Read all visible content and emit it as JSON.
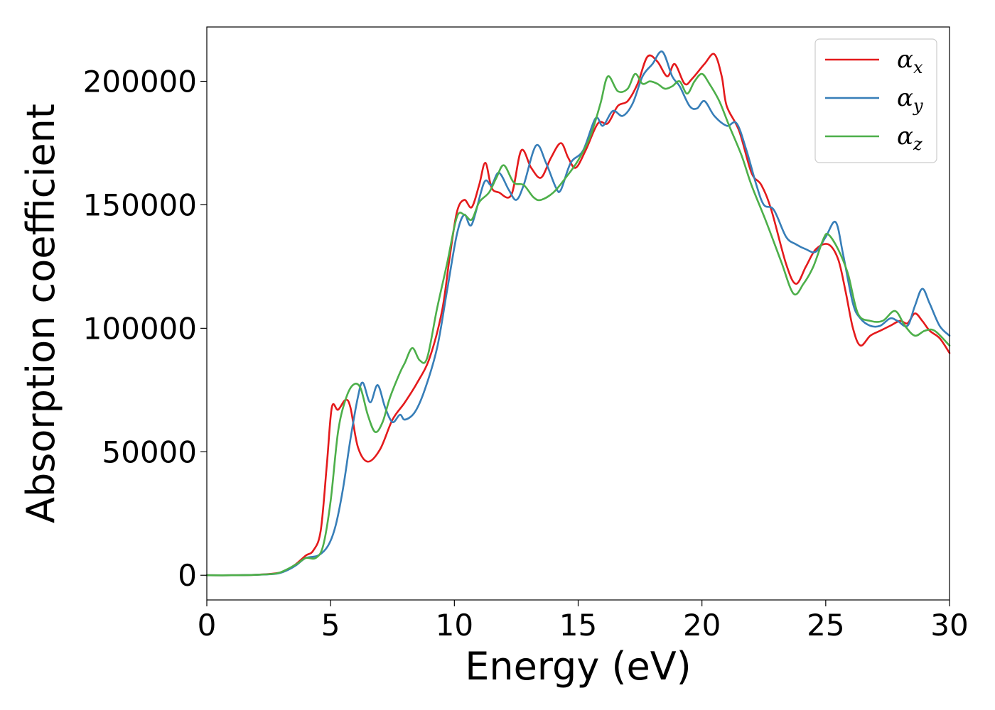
{
  "chart_data": {
    "type": "line",
    "title": "",
    "xlabel": "Energy (eV)",
    "ylabel": "Absorption coefficient",
    "xlim": [
      0,
      30
    ],
    "ylim": [
      -10000,
      222000
    ],
    "xticks": [
      0,
      5,
      10,
      15,
      20,
      25,
      30
    ],
    "yticks": [
      0,
      50000,
      100000,
      150000,
      200000
    ],
    "grid": false,
    "legend_position": "top-right",
    "series": [
      {
        "name": "α",
        "subscript": "x",
        "color": "#e41a1c",
        "points": [
          [
            0,
            0
          ],
          [
            1,
            0
          ],
          [
            2,
            200
          ],
          [
            2.8,
            800
          ],
          [
            3.2,
            2000
          ],
          [
            3.6,
            4500
          ],
          [
            4.0,
            8000
          ],
          [
            4.3,
            10000
          ],
          [
            4.6,
            18000
          ],
          [
            4.85,
            45000
          ],
          [
            5.05,
            68000
          ],
          [
            5.3,
            67000
          ],
          [
            5.6,
            71000
          ],
          [
            5.8,
            68000
          ],
          [
            6.1,
            52000
          ],
          [
            6.5,
            46000
          ],
          [
            7.0,
            51000
          ],
          [
            7.5,
            63000
          ],
          [
            8.0,
            70000
          ],
          [
            8.5,
            78000
          ],
          [
            9.0,
            88000
          ],
          [
            9.5,
            107000
          ],
          [
            9.8,
            128000
          ],
          [
            10.1,
            147000
          ],
          [
            10.4,
            152000
          ],
          [
            10.7,
            149000
          ],
          [
            11.0,
            158000
          ],
          [
            11.25,
            167000
          ],
          [
            11.5,
            157000
          ],
          [
            11.8,
            155000
          ],
          [
            12.3,
            154000
          ],
          [
            12.7,
            172000
          ],
          [
            13.1,
            165000
          ],
          [
            13.5,
            161000
          ],
          [
            13.9,
            169000
          ],
          [
            14.3,
            175000
          ],
          [
            14.6,
            169000
          ],
          [
            14.9,
            165000
          ],
          [
            15.3,
            172000
          ],
          [
            15.8,
            183000
          ],
          [
            16.2,
            183000
          ],
          [
            16.6,
            190000
          ],
          [
            17.0,
            192000
          ],
          [
            17.4,
            199000
          ],
          [
            17.8,
            210000
          ],
          [
            18.2,
            208000
          ],
          [
            18.6,
            202000
          ],
          [
            18.9,
            207000
          ],
          [
            19.3,
            199000
          ],
          [
            19.6,
            201000
          ],
          [
            20.1,
            207000
          ],
          [
            20.5,
            211000
          ],
          [
            20.8,
            202000
          ],
          [
            21.0,
            190000
          ],
          [
            21.5,
            180000
          ],
          [
            22.0,
            163000
          ],
          [
            22.4,
            158000
          ],
          [
            22.8,
            148000
          ],
          [
            23.4,
            126000
          ],
          [
            23.8,
            118000
          ],
          [
            24.2,
            125000
          ],
          [
            24.6,
            132000
          ],
          [
            25.1,
            134000
          ],
          [
            25.5,
            128000
          ],
          [
            25.8,
            115000
          ],
          [
            26.1,
            100000
          ],
          [
            26.4,
            93000
          ],
          [
            26.8,
            97000
          ],
          [
            27.2,
            99000
          ],
          [
            27.6,
            101000
          ],
          [
            28.0,
            103000
          ],
          [
            28.3,
            102000
          ],
          [
            28.6,
            106000
          ],
          [
            28.9,
            103000
          ],
          [
            29.2,
            99000
          ],
          [
            29.6,
            96000
          ],
          [
            30.0,
            90000
          ]
        ]
      },
      {
        "name": "α",
        "subscript": "y",
        "color": "#377eb8",
        "points": [
          [
            0,
            0
          ],
          [
            1,
            0
          ],
          [
            2,
            200
          ],
          [
            2.8,
            600
          ],
          [
            3.2,
            1800
          ],
          [
            3.6,
            4000
          ],
          [
            4.0,
            7000
          ],
          [
            4.5,
            8000
          ],
          [
            4.9,
            12000
          ],
          [
            5.2,
            20000
          ],
          [
            5.5,
            35000
          ],
          [
            5.8,
            55000
          ],
          [
            6.1,
            72000
          ],
          [
            6.3,
            78000
          ],
          [
            6.6,
            70000
          ],
          [
            6.9,
            77000
          ],
          [
            7.2,
            68000
          ],
          [
            7.5,
            62000
          ],
          [
            7.8,
            65000
          ],
          [
            8.0,
            63000
          ],
          [
            8.4,
            66000
          ],
          [
            8.8,
            75000
          ],
          [
            9.3,
            92000
          ],
          [
            9.7,
            115000
          ],
          [
            10.1,
            138000
          ],
          [
            10.4,
            146000
          ],
          [
            10.7,
            142000
          ],
          [
            11.2,
            159000
          ],
          [
            11.5,
            158000
          ],
          [
            11.8,
            163000
          ],
          [
            12.2,
            156000
          ],
          [
            12.5,
            152000
          ],
          [
            12.8,
            158000
          ],
          [
            13.3,
            174000
          ],
          [
            13.7,
            167000
          ],
          [
            14.1,
            157000
          ],
          [
            14.3,
            156000
          ],
          [
            14.7,
            167000
          ],
          [
            15.2,
            172000
          ],
          [
            15.7,
            185000
          ],
          [
            16.0,
            182000
          ],
          [
            16.4,
            188000
          ],
          [
            16.8,
            186000
          ],
          [
            17.2,
            191000
          ],
          [
            17.6,
            202000
          ],
          [
            18.0,
            207000
          ],
          [
            18.4,
            212000
          ],
          [
            18.8,
            202000
          ],
          [
            19.1,
            198000
          ],
          [
            19.5,
            190000
          ],
          [
            19.8,
            189000
          ],
          [
            20.1,
            192000
          ],
          [
            20.5,
            186000
          ],
          [
            21.0,
            182000
          ],
          [
            21.4,
            183000
          ],
          [
            21.8,
            172000
          ],
          [
            22.2,
            158000
          ],
          [
            22.5,
            150000
          ],
          [
            22.9,
            148000
          ],
          [
            23.4,
            137000
          ],
          [
            23.8,
            134000
          ],
          [
            24.2,
            132000
          ],
          [
            24.6,
            131000
          ],
          [
            25.0,
            137000
          ],
          [
            25.4,
            143000
          ],
          [
            25.7,
            130000
          ],
          [
            26.1,
            110000
          ],
          [
            26.4,
            104000
          ],
          [
            26.8,
            101000
          ],
          [
            27.2,
            101000
          ],
          [
            27.6,
            104000
          ],
          [
            27.9,
            103000
          ],
          [
            28.3,
            101000
          ],
          [
            28.6,
            109000
          ],
          [
            28.9,
            116000
          ],
          [
            29.2,
            110000
          ],
          [
            29.6,
            101000
          ],
          [
            30.0,
            97000
          ]
        ]
      },
      {
        "name": "α",
        "subscript": "z",
        "color": "#4daf4a",
        "points": [
          [
            0,
            0
          ],
          [
            1,
            0
          ],
          [
            2,
            200
          ],
          [
            2.8,
            700
          ],
          [
            3.2,
            2200
          ],
          [
            3.7,
            5000
          ],
          [
            4.0,
            7000
          ],
          [
            4.4,
            7000
          ],
          [
            4.7,
            12000
          ],
          [
            5.0,
            30000
          ],
          [
            5.3,
            58000
          ],
          [
            5.6,
            71000
          ],
          [
            5.9,
            77000
          ],
          [
            6.2,
            76000
          ],
          [
            6.5,
            65000
          ],
          [
            6.8,
            58000
          ],
          [
            7.1,
            62000
          ],
          [
            7.4,
            72000
          ],
          [
            7.8,
            82000
          ],
          [
            8.0,
            86000
          ],
          [
            8.3,
            92000
          ],
          [
            8.6,
            87000
          ],
          [
            8.9,
            88000
          ],
          [
            9.3,
            108000
          ],
          [
            9.7,
            126000
          ],
          [
            10.1,
            145000
          ],
          [
            10.4,
            146000
          ],
          [
            10.7,
            144000
          ],
          [
            11.0,
            151000
          ],
          [
            11.4,
            155000
          ],
          [
            11.7,
            161000
          ],
          [
            12.0,
            166000
          ],
          [
            12.4,
            159000
          ],
          [
            12.8,
            158000
          ],
          [
            13.2,
            153000
          ],
          [
            13.5,
            152000
          ],
          [
            14.0,
            155000
          ],
          [
            14.5,
            161000
          ],
          [
            15.0,
            168000
          ],
          [
            15.5,
            178000
          ],
          [
            15.9,
            191000
          ],
          [
            16.2,
            202000
          ],
          [
            16.6,
            196000
          ],
          [
            17.0,
            197000
          ],
          [
            17.3,
            203000
          ],
          [
            17.6,
            199000
          ],
          [
            17.9,
            200000
          ],
          [
            18.2,
            199000
          ],
          [
            18.5,
            197000
          ],
          [
            18.8,
            198000
          ],
          [
            19.1,
            200000
          ],
          [
            19.4,
            195000
          ],
          [
            19.7,
            200000
          ],
          [
            20.0,
            203000
          ],
          [
            20.3,
            199000
          ],
          [
            20.7,
            192000
          ],
          [
            21.1,
            182000
          ],
          [
            21.6,
            170000
          ],
          [
            22.0,
            158000
          ],
          [
            22.6,
            143000
          ],
          [
            23.2,
            127000
          ],
          [
            23.7,
            114000
          ],
          [
            24.1,
            118000
          ],
          [
            24.5,
            125000
          ],
          [
            24.9,
            136000
          ],
          [
            25.1,
            138000
          ],
          [
            25.5,
            132000
          ],
          [
            25.9,
            122000
          ],
          [
            26.3,
            106000
          ],
          [
            26.8,
            103000
          ],
          [
            27.3,
            103000
          ],
          [
            27.8,
            107000
          ],
          [
            28.2,
            101000
          ],
          [
            28.6,
            97000
          ],
          [
            29.0,
            99000
          ],
          [
            29.4,
            99000
          ],
          [
            30.0,
            93000
          ]
        ]
      }
    ]
  }
}
